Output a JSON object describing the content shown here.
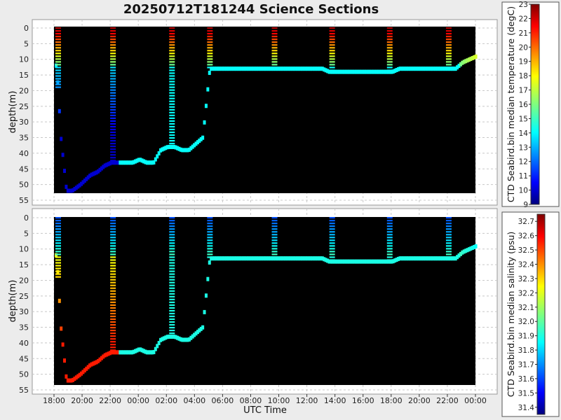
{
  "title": "20250712T181244 Science Sections",
  "chart_data": [
    {
      "type": "heatmap",
      "panel": "temperature",
      "ylabel": "depth(m)",
      "xlabel": "",
      "ylim": [
        55,
        -2
      ],
      "yticks": [
        "0",
        "5",
        "10",
        "15",
        "20",
        "25",
        "30",
        "35",
        "40",
        "45",
        "50",
        "55"
      ],
      "colorbar": {
        "label": "CTD Seabird.bin median temperature (degC)",
        "range": [
          9,
          23
        ],
        "ticks": [
          "9",
          "10",
          "11",
          "12",
          "13",
          "14",
          "15",
          "16",
          "17",
          "18",
          "19",
          "20",
          "21",
          "22",
          "23"
        ]
      },
      "profile_track": {
        "x_hours": [
          0.1,
          0.4,
          0.8,
          1.2,
          1.8,
          2.5,
          3.0,
          3.5,
          4.0,
          4.5,
          5.0,
          5.5,
          6.0,
          6.5,
          7.0,
          7.5,
          8.0,
          8.5,
          9.0,
          9.5,
          10.0,
          10.5,
          11.0,
          11.5,
          12.0,
          12.5,
          13.0,
          13.5,
          14.0,
          14.5,
          15.0,
          15.5,
          16.0,
          16.5,
          17.0,
          17.5,
          18.0,
          18.5,
          19.0,
          19.5,
          20.0,
          20.5,
          21.0,
          21.5,
          22.0,
          22.5,
          23.0,
          23.5,
          24.0,
          24.5,
          25.0,
          25.5,
          26.0,
          26.5,
          27.0,
          27.5,
          28.0,
          28.5,
          29.0,
          29.5,
          30.0
        ],
        "max_depth": [
          12,
          35,
          52,
          52,
          50,
          47,
          46,
          44,
          43,
          43,
          43,
          43,
          42,
          43,
          43,
          39,
          38,
          38,
          39,
          39,
          37,
          35,
          13,
          13,
          13,
          13,
          13,
          13,
          13,
          13,
          13,
          13,
          13,
          13,
          13,
          13,
          13,
          13,
          13,
          14,
          14,
          14,
          14,
          14,
          14,
          14,
          14,
          14,
          14,
          13,
          13,
          13,
          13,
          13,
          13,
          13,
          13,
          13,
          11,
          10,
          9
        ]
      }
    },
    {
      "type": "heatmap",
      "panel": "salinity",
      "ylabel": "depth(m)",
      "xlabel": "UTC Time",
      "ylim": [
        55,
        -2
      ],
      "yticks": [
        "0",
        "5",
        "10",
        "15",
        "20",
        "25",
        "30",
        "35",
        "40",
        "45",
        "50",
        "55"
      ],
      "x_ticks": [
        "18:00",
        "20:00",
        "22:00",
        "00:00",
        "02:00",
        "04:00",
        "06:00",
        "08:00",
        "10:00",
        "12:00",
        "14:00",
        "16:00",
        "18:00",
        "20:00",
        "22:00",
        "00:00"
      ],
      "colorbar": {
        "label": "CTD Seabird.bin median salinity (psu)",
        "range": [
          31.35,
          32.75
        ],
        "ticks": [
          "31.4",
          "31.5",
          "31.6",
          "31.7",
          "31.8",
          "31.9",
          "32.0",
          "32.1",
          "32.2",
          "32.3",
          "32.4",
          "32.5",
          "32.6",
          "32.7"
        ]
      }
    }
  ]
}
